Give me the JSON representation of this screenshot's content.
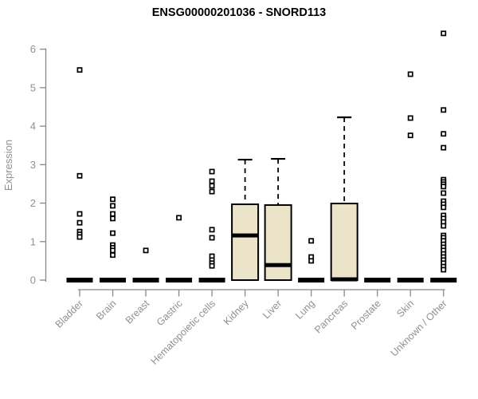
{
  "chart_data": {
    "type": "boxplot",
    "title": "ENSG00000201036 - SNORD113",
    "ylabel": "Expression",
    "xlabel": "",
    "ylim": [
      0,
      6.5
    ],
    "yticks": [
      0,
      1,
      2,
      3,
      4,
      5,
      6
    ],
    "grid": false,
    "legend": "none",
    "categories": [
      "Bladder",
      "Brain",
      "Breast",
      "Gastric",
      "Hematopoietic cells",
      "Kidney",
      "Liver",
      "Lung",
      "Pancreas",
      "Prostate",
      "Skin",
      "Unknown / Other"
    ],
    "series": [
      {
        "category": "Bladder",
        "collapsed": true,
        "q1": 0,
        "median": 0,
        "q3": 0,
        "whisker_low": 0,
        "whisker_high": 0,
        "outliers": [
          5.46,
          2.71,
          1.72,
          1.49,
          1.26,
          1.19,
          1.12
        ]
      },
      {
        "category": "Brain",
        "collapsed": true,
        "q1": 0,
        "median": 0,
        "q3": 0,
        "whisker_low": 0,
        "whisker_high": 0,
        "outliers": [
          2.1,
          1.93,
          1.72,
          1.6,
          1.22,
          0.91,
          0.84,
          0.77,
          0.65
        ]
      },
      {
        "category": "Breast",
        "collapsed": true,
        "q1": 0,
        "median": 0,
        "q3": 0,
        "whisker_low": 0,
        "whisker_high": 0,
        "outliers": [
          0.77
        ]
      },
      {
        "category": "Gastric",
        "collapsed": true,
        "q1": 0,
        "median": 0,
        "q3": 0,
        "whisker_low": 0,
        "whisker_high": 0,
        "outliers": [
          1.62
        ]
      },
      {
        "category": "Hematopoietic cells",
        "collapsed": true,
        "q1": 0,
        "median": 0,
        "q3": 0,
        "whisker_low": 0,
        "whisker_high": 0,
        "outliers": [
          2.82,
          2.57,
          2.45,
          2.3,
          1.31,
          1.1,
          0.62,
          0.52,
          0.44,
          0.37
        ]
      },
      {
        "category": "Kidney",
        "collapsed": false,
        "q1": 0,
        "median": 1.16,
        "q3": 1.97,
        "whisker_low": 0,
        "whisker_high": 3.13,
        "outliers": []
      },
      {
        "category": "Liver",
        "collapsed": false,
        "q1": 0,
        "median": 0.39,
        "q3": 1.95,
        "whisker_low": 0,
        "whisker_high": 3.15,
        "outliers": []
      },
      {
        "category": "Lung",
        "collapsed": true,
        "q1": 0,
        "median": 0,
        "q3": 0,
        "whisker_low": 0,
        "whisker_high": 0,
        "outliers": [
          1.02,
          0.6,
          0.5
        ]
      },
      {
        "category": "Pancreas",
        "collapsed": false,
        "q1": 0,
        "median": 0.02,
        "q3": 1.99,
        "whisker_low": 0,
        "whisker_high": 4.23,
        "outliers": []
      },
      {
        "category": "Prostate",
        "collapsed": true,
        "q1": 0,
        "median": 0,
        "q3": 0,
        "whisker_low": 0,
        "whisker_high": 0,
        "outliers": []
      },
      {
        "category": "Skin",
        "collapsed": true,
        "q1": 0,
        "median": 0,
        "q3": 0,
        "whisker_low": 0,
        "whisker_high": 0,
        "outliers": [
          5.35,
          4.21,
          3.76
        ]
      },
      {
        "category": "Unknown / Other",
        "collapsed": true,
        "q1": 0,
        "median": 0,
        "q3": 0,
        "whisker_low": 0,
        "whisker_high": 0,
        "outliers": [
          6.41,
          4.42,
          3.8,
          3.44,
          2.61,
          2.55,
          2.49,
          2.43,
          2.26,
          2.05,
          1.97,
          1.89,
          1.68,
          1.6,
          1.51,
          1.41,
          1.16,
          1.1,
          1.02,
          0.93,
          0.85,
          0.77,
          0.68,
          0.6,
          0.52,
          0.44,
          0.35,
          0.27
        ]
      }
    ],
    "colors": {
      "box_fill": "#ece4c9",
      "box_stroke": "#000000",
      "median": "#000000",
      "whisker": "#000000",
      "outlier_stroke": "#000000",
      "outlier_fill": "#ffffff",
      "axis": "#888888",
      "tick_label": "#909090",
      "title": "#000000",
      "background": "#ffffff"
    }
  }
}
